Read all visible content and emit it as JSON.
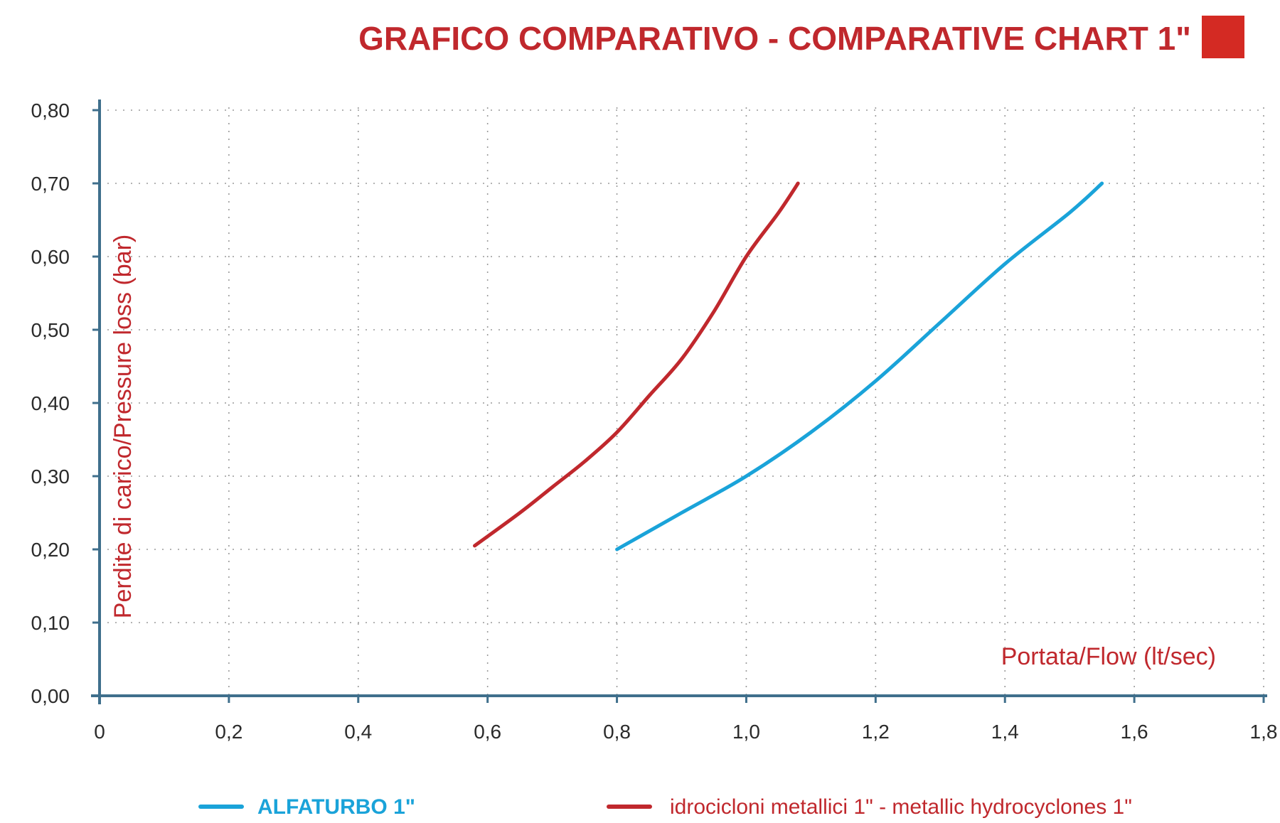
{
  "chart_data": {
    "type": "line",
    "title": "GRAFICO COMPARATIVO - COMPARATIVE CHART 1\"",
    "xlabel": "Portata/Flow (lt/sec)",
    "ylabel": "Perdite di carico/Pressure loss (bar)",
    "xlim": [
      0,
      1.8
    ],
    "ylim": [
      0,
      0.8
    ],
    "x_ticks": [
      "0",
      "0,2",
      "0,4",
      "0,6",
      "0,8",
      "1,0",
      "1,2",
      "1,4",
      "1,6",
      "1,8"
    ],
    "y_ticks": [
      "0,00",
      "0,10",
      "0,20",
      "0,30",
      "0,40",
      "0,50",
      "0,60",
      "0,70",
      "0,80"
    ],
    "grid": true,
    "legend_position": "bottom",
    "series": [
      {
        "name": "ALFATURBO 1\"",
        "color": "#1aa3d9",
        "x": [
          0.8,
          0.9,
          1.0,
          1.1,
          1.2,
          1.3,
          1.4,
          1.5,
          1.55
        ],
        "y": [
          0.2,
          0.25,
          0.3,
          0.36,
          0.43,
          0.51,
          0.59,
          0.66,
          0.7
        ]
      },
      {
        "name": "idrocicloni metallici 1\" - metallic hydrocyclones 1\"",
        "color": "#c0282d",
        "x": [
          0.58,
          0.65,
          0.7,
          0.75,
          0.8,
          0.85,
          0.9,
          0.95,
          1.0,
          1.05,
          1.08
        ],
        "y": [
          0.205,
          0.25,
          0.285,
          0.32,
          0.36,
          0.41,
          0.46,
          0.525,
          0.6,
          0.66,
          0.7
        ]
      }
    ],
    "title_marker_color": "#d42a23",
    "axis_color": "#3f6f8c",
    "label_color": "#c0282d"
  }
}
